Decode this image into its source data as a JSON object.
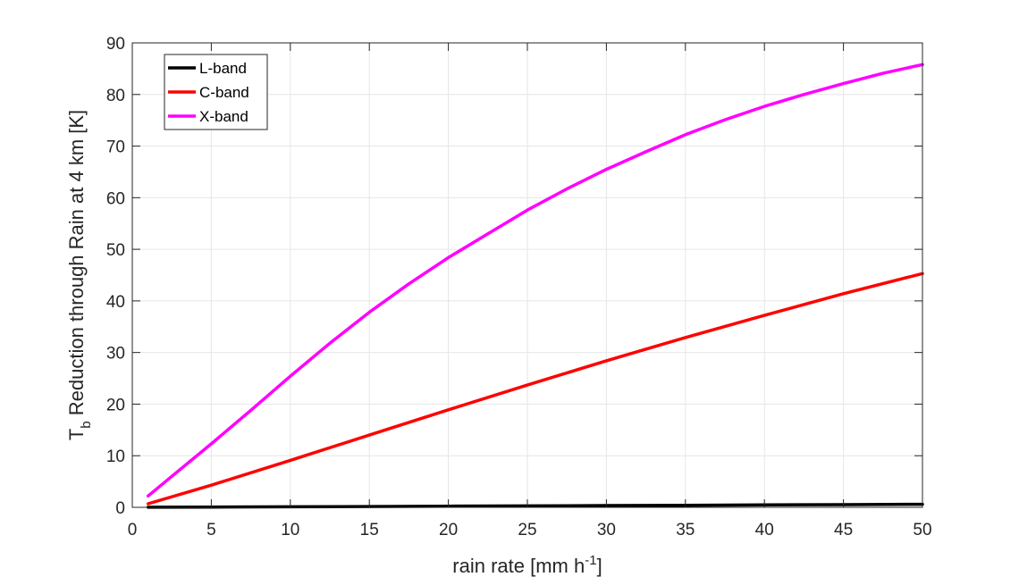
{
  "chart_data": {
    "type": "line",
    "xlabel": "rain rate [mm h",
    "xlabel_sup": "-1",
    "xlabel_end": "]",
    "ylabel_pre": "T",
    "ylabel_sub": "b",
    "ylabel_rest": " Reduction through Rain at 4 km [K]",
    "xlim": [
      0,
      50
    ],
    "ylim": [
      0,
      90
    ],
    "xticks": [
      0,
      5,
      10,
      15,
      20,
      25,
      30,
      35,
      40,
      45,
      50
    ],
    "yticks": [
      0,
      10,
      20,
      30,
      40,
      50,
      60,
      70,
      80,
      90
    ],
    "grid": true,
    "legend_position": "top-left",
    "series": [
      {
        "name": "L-band",
        "color": "#000000",
        "x": [
          1,
          5,
          10,
          15,
          20,
          25,
          30,
          35,
          40,
          45,
          50
        ],
        "y": [
          0.01,
          0.05,
          0.1,
          0.16,
          0.22,
          0.28,
          0.34,
          0.4,
          0.46,
          0.52,
          0.58
        ]
      },
      {
        "name": "C-band",
        "color": "#ff0000",
        "x": [
          1,
          5,
          10,
          15,
          20,
          25,
          30,
          35,
          40,
          45,
          50
        ],
        "y": [
          0.7,
          4.3,
          9.1,
          14.0,
          18.9,
          23.7,
          28.4,
          32.9,
          37.2,
          41.4,
          45.3
        ]
      },
      {
        "name": "X-band",
        "color": "#ff00ff",
        "x": [
          1,
          2.5,
          5,
          7.5,
          10,
          12.5,
          15,
          17.5,
          20,
          22.5,
          25,
          27.5,
          30,
          32.5,
          35,
          37.5,
          40,
          42.5,
          45,
          47.5,
          50
        ],
        "y": [
          2.2,
          6.0,
          12.3,
          18.8,
          25.4,
          31.8,
          37.8,
          43.3,
          48.4,
          53.0,
          57.6,
          61.7,
          65.5,
          68.9,
          72.2,
          75.1,
          77.7,
          80.0,
          82.1,
          84.1,
          85.8
        ]
      }
    ]
  }
}
